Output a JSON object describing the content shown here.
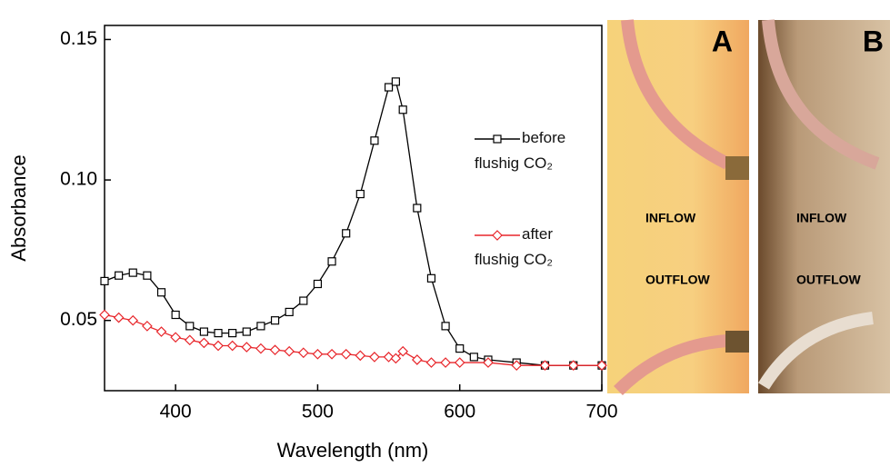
{
  "chart_data": {
    "type": "line",
    "x_label": "Wavelength (nm)",
    "y_label": "Absorbance",
    "xlim": [
      350,
      700
    ],
    "ylim": [
      0.025,
      0.155
    ],
    "xticks": [
      400,
      500,
      600,
      700
    ],
    "yticks": [
      0.05,
      {
        "value": 0.1,
        "label": "0.10"
      },
      0.15
    ],
    "series": [
      {
        "name": "before flushig CO₂",
        "color": "#000000",
        "marker": "square",
        "x": [
          350,
          360,
          370,
          380,
          390,
          400,
          410,
          420,
          430,
          440,
          450,
          460,
          470,
          480,
          490,
          500,
          510,
          520,
          530,
          540,
          550,
          555,
          560,
          570,
          580,
          590,
          600,
          610,
          620,
          640,
          660,
          680,
          700
        ],
        "values": [
          0.064,
          0.066,
          0.067,
          0.066,
          0.06,
          0.052,
          0.048,
          0.046,
          0.0455,
          0.0455,
          0.046,
          0.048,
          0.05,
          0.053,
          0.057,
          0.063,
          0.071,
          0.081,
          0.095,
          0.114,
          0.133,
          0.135,
          0.125,
          0.09,
          0.065,
          0.048,
          0.04,
          0.037,
          0.036,
          0.035,
          0.034,
          0.034,
          0.034
        ]
      },
      {
        "name": "after flushig CO₂",
        "color": "#e8262b",
        "marker": "diamond",
        "x": [
          350,
          360,
          370,
          380,
          390,
          400,
          410,
          420,
          430,
          440,
          450,
          460,
          470,
          480,
          490,
          500,
          510,
          520,
          530,
          540,
          550,
          555,
          560,
          570,
          580,
          590,
          600,
          620,
          640,
          660,
          680,
          700
        ],
        "values": [
          0.052,
          0.051,
          0.05,
          0.048,
          0.046,
          0.044,
          0.043,
          0.042,
          0.041,
          0.041,
          0.0405,
          0.04,
          0.0395,
          0.039,
          0.0385,
          0.038,
          0.038,
          0.038,
          0.0375,
          0.037,
          0.037,
          0.0365,
          0.039,
          0.036,
          0.035,
          0.035,
          0.035,
          0.035,
          0.034,
          0.034,
          0.034,
          0.034
        ]
      }
    ]
  },
  "photo_panels": [
    {
      "label": "A",
      "texts": [
        "INFLOW",
        "OUTFLOW"
      ]
    },
    {
      "label": "B",
      "texts": [
        "INFLOW",
        "OUTFLOW"
      ]
    }
  ]
}
